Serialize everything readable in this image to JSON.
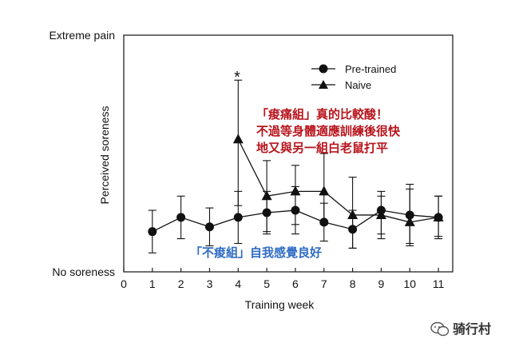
{
  "chart_data": {
    "type": "line",
    "title": "",
    "xlabel": "Training week",
    "ylabel": "Perceived soreness",
    "xlim": [
      0,
      11.5
    ],
    "ylim": [
      0,
      10
    ],
    "x_ticks": [
      0,
      1,
      2,
      3,
      4,
      5,
      6,
      7,
      8,
      9,
      10,
      11
    ],
    "y_tick_labels": {
      "top": "Extreme pain",
      "bottom": "No soreness"
    },
    "grid": false,
    "legend_position": "top-right",
    "series": [
      {
        "name": "Pre-trained",
        "marker": "circle",
        "x": [
          1,
          2,
          3,
          4,
          5,
          6,
          7,
          8,
          9,
          10,
          11
        ],
        "y": [
          1.7,
          2.3,
          1.9,
          2.3,
          2.5,
          2.6,
          2.1,
          1.8,
          2.6,
          2.4,
          2.3
        ],
        "err_low": [
          0.9,
          0.9,
          0.8,
          1.1,
          0.9,
          1.0,
          0.8,
          0.8,
          1.0,
          1.2,
          0.8
        ],
        "err_high": [
          0.9,
          0.9,
          0.8,
          1.1,
          0.9,
          1.0,
          0.8,
          0.8,
          0.8,
          1.3,
          0.9
        ]
      },
      {
        "name": "Naive",
        "marker": "triangle",
        "x": [
          4,
          5,
          6,
          7,
          8,
          9,
          10,
          11
        ],
        "y": [
          5.6,
          3.2,
          3.4,
          3.4,
          2.4,
          2.4,
          2.1,
          2.3
        ],
        "err_low": [
          2.8,
          1.5,
          1.4,
          1.4,
          1.4,
          1.0,
          1.0,
          0.9
        ],
        "err_high": [
          2.5,
          1.5,
          1.1,
          1.6,
          1.6,
          0.8,
          1.4,
          0.9
        ]
      }
    ],
    "annotations": {
      "star": "*",
      "red_note": [
        "「痠痛組」真的比較酸！",
        "不過等身體適應訓練後很快",
        "地又與另一組白老鼠打平"
      ],
      "blue_note": "「不痠組」自我感覺良好",
      "watermark": "骑行村"
    },
    "colors": {
      "red_note": "#b8141c",
      "blue_note": "#2f6cc4",
      "watermark": "#333333"
    }
  }
}
